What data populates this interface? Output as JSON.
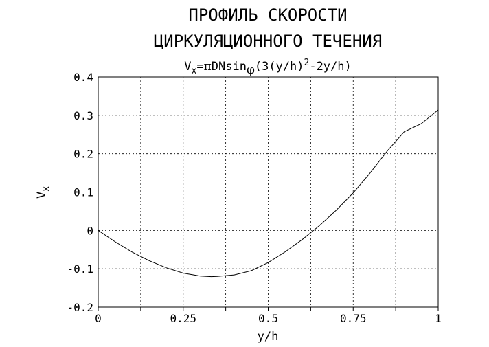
{
  "chart_data": {
    "type": "line",
    "title_line1": "ПРОФИЛЬ СКОРОСТИ",
    "title_line2": "ЦИРКУЛЯЦИОННОГО ТЕЧЕНИЯ",
    "formula": {
      "v": "V",
      "v_sub": "x",
      "eq": "=",
      "pi": "π",
      "dns": "DNsin",
      "phi": "φ",
      "paren_open": "(3(y/h)",
      "sup": "2",
      "tail": "-2y/h)"
    },
    "xlabel": "y/h",
    "ylabel_main": "V",
    "ylabel_sub": "x",
    "xlim": [
      0,
      1
    ],
    "ylim": [
      -0.2,
      0.4
    ],
    "x_ticks": [
      0,
      0.125,
      0.25,
      0.375,
      0.5,
      0.625,
      0.75,
      0.875,
      1
    ],
    "x_tick_labels": [
      "0",
      "",
      "0.25",
      "",
      "0.5",
      "",
      "0.75",
      "",
      "1"
    ],
    "y_ticks": [
      -0.2,
      -0.1,
      0,
      0.1,
      0.2,
      0.3,
      0.4
    ],
    "y_tick_labels": [
      "-0.2",
      "-0.1",
      "0",
      "0.1",
      "0.2",
      "0.3",
      "0.4"
    ],
    "grid": true,
    "series": [
      {
        "x": [
          0,
          0.05,
          0.1,
          0.15,
          0.2,
          0.25,
          0.3,
          0.333,
          0.35,
          0.4,
          0.45,
          0.5,
          0.55,
          0.6,
          0.65,
          0.7,
          0.75,
          0.8,
          0.85,
          0.9,
          0.95,
          1
        ],
        "y": [
          0,
          -0.0299,
          -0.0565,
          -0.079,
          -0.0974,
          -0.1113,
          -0.1189,
          -0.1205,
          -0.12,
          -0.116,
          -0.105,
          -0.0838,
          -0.0558,
          -0.0239,
          0.012,
          0.0525,
          0.0979,
          0.15,
          0.207,
          0.257,
          0.278,
          0.314
        ]
      }
    ]
  }
}
